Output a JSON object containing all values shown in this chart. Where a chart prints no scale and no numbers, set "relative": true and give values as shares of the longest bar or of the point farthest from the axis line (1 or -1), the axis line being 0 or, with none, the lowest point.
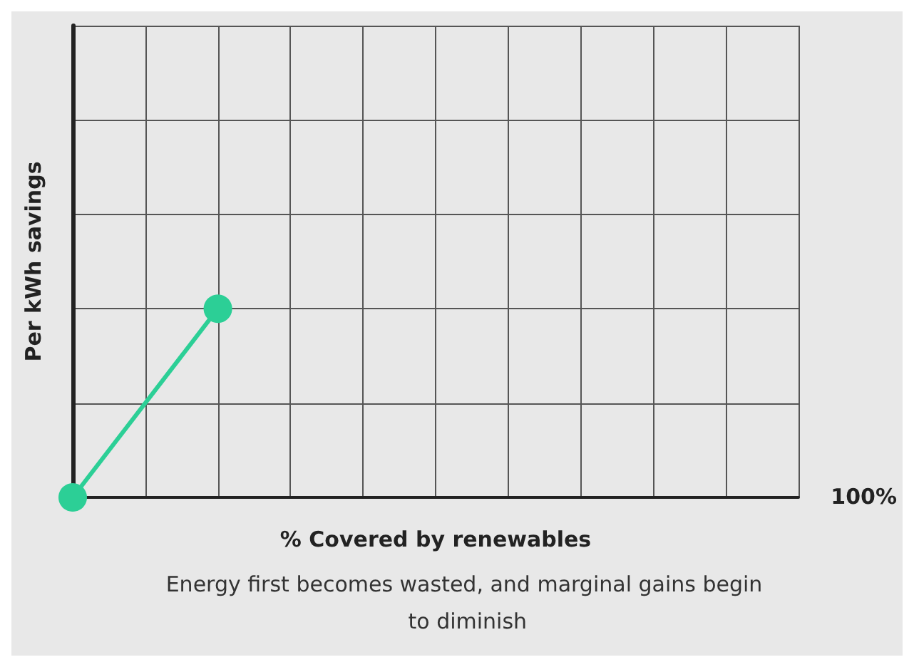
{
  "chart_data": {
    "type": "line",
    "relative": true,
    "categories": [
      null,
      null,
      null,
      null,
      null,
      null,
      null,
      null,
      null,
      null,
      null
    ],
    "series": [
      {
        "color": "#2ccf96",
        "values": [
          0,
          null,
          1,
          null,
          null,
          null,
          null,
          null,
          null,
          null,
          null
        ]
      }
    ],
    "xlabel": "% Covered by renewables",
    "ylabel": "Per kWh savings",
    "annotations": [
      "100%",
      "Energy first becomes wasted, and marginal gains begin to diminish"
    ],
    "grid": true,
    "marker": "circle",
    "line_style": "solid"
  }
}
